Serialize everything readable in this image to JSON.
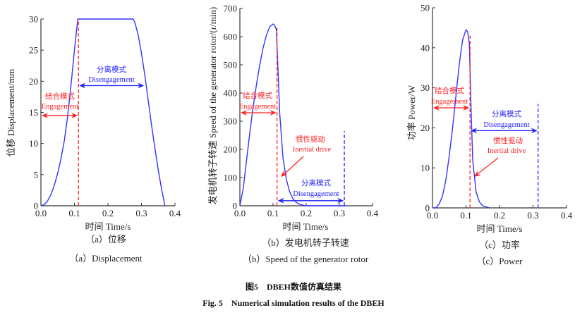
{
  "figure": {
    "title_cn": "图5　DBEH数值仿真结果",
    "title_en": "Fig. 5　Numerical simulation results of the DBEH"
  },
  "colors": {
    "curve": "#3333ff",
    "engage": "#ff2020",
    "disengage": "#2020ff",
    "axis": "#333333"
  },
  "chart_data": [
    {
      "type": "line",
      "caption_cn": "（a）位移",
      "caption_en": "（a）Displacement",
      "xlabel": "时间 Time/s",
      "ylabel": "位移 Displacement/mm",
      "xlim": [
        0,
        0.4
      ],
      "ylim": [
        0,
        30
      ],
      "xticks": [
        "0.0",
        "0.1",
        "0.2",
        "0.3",
        "0.4"
      ],
      "yticks": [
        "0",
        "5",
        "10",
        "15",
        "20",
        "25",
        "30"
      ],
      "series": [
        {
          "name": "Displacement",
          "x": [
            0,
            0.01,
            0.02,
            0.03,
            0.04,
            0.05,
            0.06,
            0.07,
            0.08,
            0.09,
            0.1,
            0.11,
            0.275,
            0.28,
            0.29,
            0.3,
            0.31,
            0.32,
            0.33,
            0.34,
            0.35,
            0.36,
            0.37
          ],
          "y": [
            0,
            0.2,
            0.8,
            1.8,
            3.3,
            5.2,
            7.6,
            10.5,
            14.5,
            19.5,
            25,
            30,
            30,
            29.5,
            27.5,
            24.5,
            21,
            17,
            13,
            9.3,
            5.8,
            2.7,
            0
          ]
        }
      ],
      "annotations": {
        "engagement_cn": "结合模式",
        "engagement_en": "Engagement",
        "disengagement_cn": "分离模式",
        "disengagement_en": "Disengagement",
        "engage_arrow": {
          "x": [
            0,
            0.112
          ],
          "y": 14.5
        },
        "disengage_arrow": {
          "x": [
            0.112,
            0.31
          ],
          "y": 19.3
        },
        "red_dash": {
          "x": 0.112,
          "ymax": 30
        }
      }
    },
    {
      "type": "line",
      "caption_cn": "（b）发电机转子转速",
      "caption_en": "（b）Speed of the generator rotor",
      "xlabel": "时间 Time/s",
      "ylabel": "发电机转子转速 Speed of the generator rotor/(r/min)",
      "xlim": [
        0,
        0.4
      ],
      "ylim": [
        0,
        700
      ],
      "xticks": [
        "0.0",
        "0.1",
        "0.2",
        "0.3",
        "0.4"
      ],
      "yticks": [
        "0",
        "100",
        "200",
        "300",
        "400",
        "500",
        "600",
        "700"
      ],
      "series": [
        {
          "name": "Speed",
          "x": [
            0,
            0.01,
            0.02,
            0.03,
            0.04,
            0.05,
            0.06,
            0.07,
            0.08,
            0.09,
            0.1,
            0.105,
            0.11,
            0.115,
            0.12,
            0.13,
            0.14,
            0.15,
            0.16,
            0.17,
            0.18,
            0.2,
            0.32
          ],
          "y": [
            0,
            60,
            160,
            260,
            350,
            430,
            500,
            560,
            605,
            635,
            645,
            640,
            625,
            480,
            330,
            170,
            95,
            50,
            25,
            12,
            5,
            0,
            0
          ]
        }
      ],
      "annotations": {
        "engagement_cn": "结合模式",
        "engagement_en": "Engagement",
        "disengagement_cn": "分离模式",
        "disengagement_en": "Disengagement",
        "inertial_cn": "惯性驱动",
        "inertial_en": "Inertial drive",
        "engage_arrow": {
          "x": [
            0,
            0.112
          ],
          "y": 330
        },
        "disengage_arrow": {
          "x": [
            0.112,
            0.315
          ],
          "y": 18
        },
        "red_dash": {
          "x": 0.112,
          "ymax": 630
        },
        "blue_dash": {
          "x": 0.315,
          "ymax": 265
        }
      }
    },
    {
      "type": "line",
      "caption_cn": "（c）功率",
      "caption_en": "（c）Power",
      "xlabel": "时间 Time/s",
      "ylabel": "功率 Power/W",
      "xlim": [
        0,
        0.4
      ],
      "ylim": [
        0,
        50
      ],
      "xticks": [
        "0.0",
        "0.1",
        "0.2",
        "0.3",
        "0.4"
      ],
      "yticks": [
        "0",
        "10",
        "20",
        "30",
        "40",
        "50"
      ],
      "series": [
        {
          "name": "Power",
          "x": [
            0,
            0.01,
            0.02,
            0.03,
            0.04,
            0.05,
            0.06,
            0.07,
            0.08,
            0.09,
            0.1,
            0.105,
            0.11,
            0.115,
            0.12,
            0.13,
            0.14,
            0.15,
            0.17
          ],
          "y": [
            0,
            0,
            1,
            3,
            7,
            13,
            20,
            28,
            36,
            42,
            44.5,
            44,
            41,
            25,
            12,
            4,
            1.5,
            0.5,
            0
          ]
        }
      ],
      "annotations": {
        "engagement_cn": "结合模式",
        "engagement_en": "Engagement",
        "disengagement_cn": "分离模式",
        "disengagement_en": "Disengagement",
        "inertial_cn": "惯性驱动",
        "inertial_en": "Inertial drive",
        "engage_arrow": {
          "x": [
            0,
            0.112
          ],
          "y": 25
        },
        "disengage_arrow": {
          "x": [
            0.112,
            0.315
          ],
          "y": 19.3
        },
        "red_dash": {
          "x": 0.112,
          "ymax": 43
        },
        "blue_dash": {
          "x": 0.315,
          "ymax": 26
        }
      }
    }
  ]
}
